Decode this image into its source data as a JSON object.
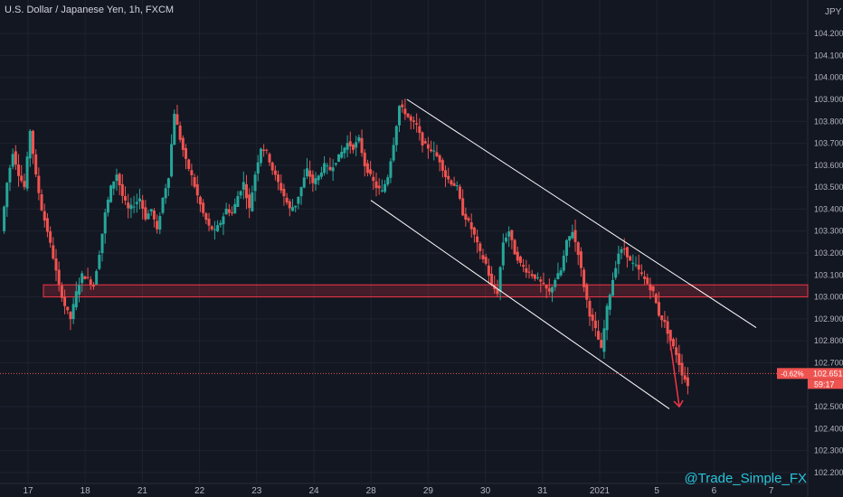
{
  "header": {
    "symbol_title": "U.S. Dollar / Japanese Yen, 1h, FXCM"
  },
  "watermark": "@Trade_Simple_FX",
  "chart_data": {
    "type": "candlestick",
    "currency_label": "JPY",
    "y_ticks": [
      "104.200",
      "104.100",
      "104.000",
      "103.900",
      "103.800",
      "103.700",
      "103.600",
      "103.500",
      "103.400",
      "103.300",
      "103.200",
      "103.100",
      "103.000",
      "102.900",
      "102.800",
      "102.700",
      "102.500",
      "102.400",
      "102.300",
      "102.200"
    ],
    "ylim": [
      102.15,
      104.32
    ],
    "x_ticks": [
      "17",
      "18",
      "21",
      "22",
      "23",
      "24",
      "28",
      "29",
      "30",
      "31",
      "2021",
      "5",
      "6",
      "7"
    ],
    "price_badge": {
      "change": "-0.62%",
      "price": "102.651",
      "countdown": "59:17"
    },
    "support_zone": {
      "from": 103.0,
      "to": 103.055
    },
    "channel": {
      "upper": {
        "from": {
          "x": "28",
          "y": 103.9
        },
        "to": {
          "x": "6.5",
          "y": 102.86
        }
      },
      "lower": {
        "from": {
          "x": "27.9",
          "y": 103.44
        },
        "to": {
          "x": "5.5",
          "y": 102.49
        }
      }
    },
    "projection_arrow": {
      "from": 102.82,
      "to": 102.5
    },
    "price_path": [
      103.3,
      103.52,
      103.66,
      103.56,
      103.5,
      103.76,
      103.55,
      103.4,
      103.3,
      103.18,
      103.05,
      102.96,
      102.9,
      103.02,
      103.1,
      103.08,
      103.05,
      103.2,
      103.38,
      103.5,
      103.56,
      103.46,
      103.4,
      103.42,
      103.45,
      103.36,
      103.4,
      103.3,
      103.45,
      103.55,
      103.84,
      103.72,
      103.62,
      103.55,
      103.46,
      103.38,
      103.32,
      103.3,
      103.34,
      103.4,
      103.38,
      103.46,
      103.52,
      103.4,
      103.56,
      103.68,
      103.66,
      103.58,
      103.52,
      103.46,
      103.4,
      103.42,
      103.5,
      103.58,
      103.52,
      103.55,
      103.6,
      103.58,
      103.62,
      103.66,
      103.7,
      103.68,
      103.72,
      103.6,
      103.55,
      103.5,
      103.48,
      103.55,
      103.7,
      103.87,
      103.84,
      103.8,
      103.78,
      103.7,
      103.68,
      103.66,
      103.62,
      103.55,
      103.52,
      103.5,
      103.38,
      103.34,
      103.28,
      103.2,
      103.15,
      103.05,
      103.02,
      103.25,
      103.3,
      103.2,
      103.15,
      103.12,
      103.1,
      103.08,
      103.05,
      103.02,
      103.08,
      103.12,
      103.25,
      103.3,
      103.2,
      103.05,
      102.92,
      102.85,
      102.76,
      102.95,
      103.08,
      103.2,
      103.22,
      103.16,
      103.14,
      103.1,
      103.06,
      103.02,
      102.92,
      102.88,
      102.8,
      102.74,
      102.65,
      102.6
    ]
  }
}
